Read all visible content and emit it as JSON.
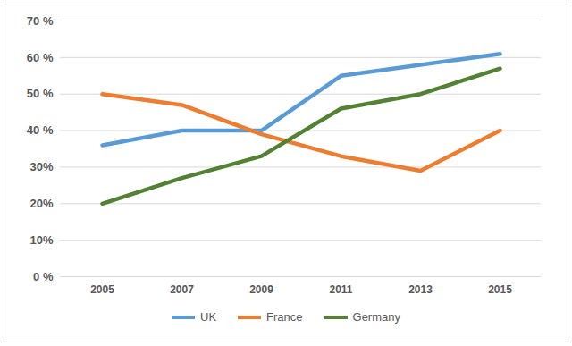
{
  "chart_data": {
    "type": "line",
    "categories": [
      "2005",
      "2007",
      "2009",
      "2011",
      "2013",
      "2015"
    ],
    "series": [
      {
        "name": "UK",
        "color": "#5b9bd5",
        "values": [
          36,
          40,
          40,
          55,
          58,
          61
        ]
      },
      {
        "name": "France",
        "color": "#ed7d31",
        "values": [
          50,
          47,
          39,
          33,
          29,
          40
        ]
      },
      {
        "name": "Germany",
        "color": "#548235",
        "values": [
          20,
          27,
          33,
          46,
          50,
          57
        ]
      }
    ],
    "ylim": [
      0,
      70
    ],
    "yticks": [
      {
        "value": 0,
        "label": "0 %"
      },
      {
        "value": 10,
        "label": "10%"
      },
      {
        "value": 20,
        "label": "20%"
      },
      {
        "value": 30,
        "label": "30%"
      },
      {
        "value": 40,
        "label": "40 %"
      },
      {
        "value": 50,
        "label": "50 %"
      },
      {
        "value": 60,
        "label": "60 %"
      },
      {
        "value": 70,
        "label": "70 %"
      }
    ],
    "grid": true,
    "legend": "bottom"
  }
}
